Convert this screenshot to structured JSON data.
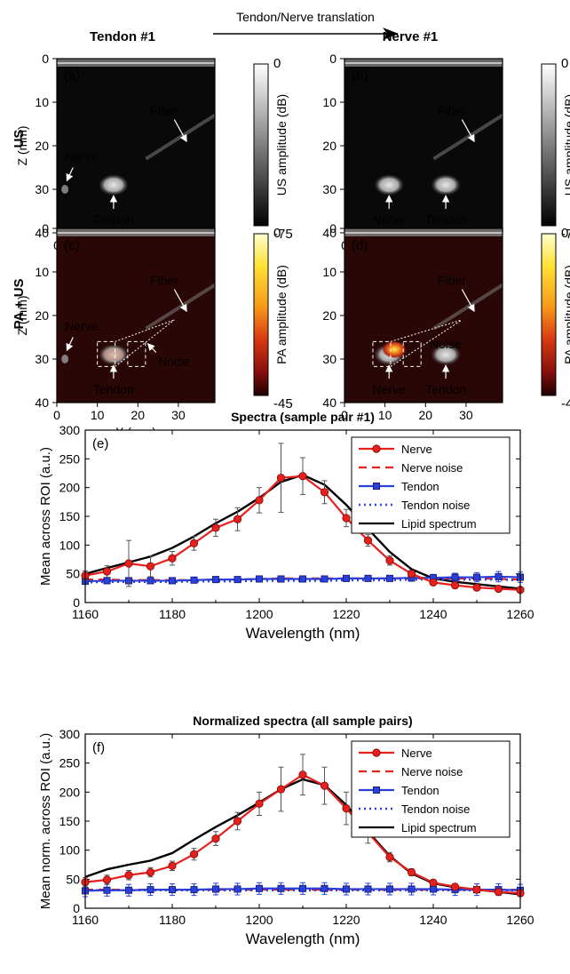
{
  "header": {
    "left_title": "Tendon #1",
    "right_title": "Nerve #1",
    "translation_label": "Tendon/Nerve translation"
  },
  "row_labels": {
    "us": "US",
    "paus": "PA + US"
  },
  "image_panels": {
    "panels": [
      {
        "id": "a",
        "label": "(a)",
        "mode": "US",
        "annotations": [
          {
            "key": "fiber",
            "text": "Fiber"
          },
          {
            "key": "nerve",
            "text": "Nerve"
          },
          {
            "key": "tendon",
            "text": "Tendon"
          }
        ]
      },
      {
        "id": "b",
        "label": "(b)",
        "mode": "US",
        "annotations": [
          {
            "key": "fiber",
            "text": "Fiber"
          },
          {
            "key": "nerve",
            "text": "Nerve"
          },
          {
            "key": "tendon",
            "text": "Tendon"
          }
        ]
      },
      {
        "id": "c",
        "label": "(c)",
        "mode": "PA+US",
        "annotations": [
          {
            "key": "fiber",
            "text": "Fiber"
          },
          {
            "key": "nerve",
            "text": "Nerve"
          },
          {
            "key": "tendon",
            "text": "Tendon"
          },
          {
            "key": "noise",
            "text": "Noise"
          }
        ]
      },
      {
        "id": "d",
        "label": "(d)",
        "mode": "PA+US",
        "annotations": [
          {
            "key": "fiber",
            "text": "Fiber"
          },
          {
            "key": "nerve",
            "text": "Nerve"
          },
          {
            "key": "tendon",
            "text": "Tendon"
          },
          {
            "key": "noise",
            "text": "Noise"
          }
        ]
      }
    ],
    "z_axis": {
      "label": "Z (mm)",
      "ticks": [
        0,
        10,
        20,
        30,
        40
      ]
    },
    "x_axis": {
      "label": "X (mm)",
      "ticks": [
        0,
        10,
        20,
        30
      ]
    },
    "us_colorbar": {
      "label": "US amplitude (dB)",
      "max": "0",
      "min": "-75",
      "colors": [
        "#ffffff",
        "#000000"
      ]
    },
    "pa_colorbar": {
      "label": "PA amplitude (dB)",
      "max": "0",
      "min": "-45",
      "colors": [
        "#ffffd0",
        "#ffe033",
        "#f79a1a",
        "#d93a12",
        "#8a0f0c",
        "#1e0000"
      ]
    }
  },
  "chart_data": [
    {
      "id": "e",
      "type": "line",
      "panel_label": "(e)",
      "title": "Spectra (sample pair #1)",
      "xlabel": "Wavelength (nm)",
      "ylabel": "Mean across ROI (a.u.)",
      "xlim": [
        1160,
        1260
      ],
      "ylim": [
        0,
        300
      ],
      "xticks": [
        1160,
        1180,
        1200,
        1220,
        1240,
        1260
      ],
      "yticks": [
        0,
        50,
        100,
        150,
        200,
        250,
        300
      ],
      "legend_position": "top-right",
      "x": [
        1160,
        1165,
        1170,
        1175,
        1180,
        1185,
        1190,
        1195,
        1200,
        1205,
        1210,
        1215,
        1220,
        1225,
        1230,
        1235,
        1240,
        1245,
        1250,
        1255,
        1260
      ],
      "series": [
        {
          "name": "Nerve",
          "color": "#e8201d",
          "style": "solid-circle",
          "values": [
            47,
            54,
            68,
            63,
            77,
            103,
            130,
            145,
            178,
            217,
            220,
            192,
            147,
            108,
            73,
            50,
            35,
            30,
            26,
            24,
            22
          ],
          "errors": [
            8,
            10,
            40,
            18,
            12,
            12,
            15,
            20,
            22,
            60,
            32,
            20,
            15,
            10,
            8,
            6,
            5,
            5,
            4,
            4,
            4
          ]
        },
        {
          "name": "Nerve noise",
          "color": "#e8201d",
          "style": "dashed",
          "values": [
            40,
            40,
            39,
            39,
            39,
            39,
            40,
            40,
            41,
            42,
            42,
            42,
            42,
            42,
            42,
            42,
            42,
            42,
            42,
            41,
            40
          ]
        },
        {
          "name": "Tendon",
          "color": "#2b3fd9",
          "style": "solid-square",
          "values": [
            37,
            38,
            38,
            38,
            38,
            39,
            40,
            40,
            41,
            41,
            41,
            41,
            42,
            42,
            42,
            43,
            43,
            44,
            44,
            45,
            44
          ],
          "errors": [
            5,
            5,
            5,
            5,
            5,
            5,
            5,
            5,
            5,
            5,
            5,
            5,
            5,
            5,
            5,
            6,
            6,
            7,
            8,
            9,
            9
          ]
        },
        {
          "name": "Tendon noise",
          "color": "#2b3fd9",
          "style": "dotted",
          "values": [
            35,
            36,
            36,
            36,
            36,
            37,
            37,
            37,
            38,
            38,
            38,
            38,
            39,
            39,
            39,
            40,
            40,
            40,
            40,
            40,
            39
          ]
        },
        {
          "name": "Lipid spectrum",
          "color": "#000000",
          "style": "solid",
          "values": [
            50,
            60,
            70,
            80,
            95,
            115,
            138,
            158,
            182,
            210,
            222,
            205,
            170,
            128,
            88,
            58,
            42,
            36,
            32,
            28,
            24
          ]
        }
      ]
    },
    {
      "id": "f",
      "type": "line",
      "panel_label": "(f)",
      "title": "Normalized spectra (all sample pairs)",
      "xlabel": "Wavelength (nm)",
      "ylabel": "Mean norm. across ROI (a.u.)",
      "xlim": [
        1160,
        1260
      ],
      "ylim": [
        0,
        300
      ],
      "xticks": [
        1160,
        1180,
        1200,
        1220,
        1240,
        1260
      ],
      "yticks": [
        0,
        50,
        100,
        150,
        200,
        250,
        300
      ],
      "legend_position": "top-right",
      "x": [
        1160,
        1165,
        1170,
        1175,
        1180,
        1185,
        1190,
        1195,
        1200,
        1205,
        1210,
        1215,
        1220,
        1225,
        1230,
        1235,
        1240,
        1245,
        1250,
        1255,
        1260
      ],
      "series": [
        {
          "name": "Nerve",
          "color": "#e8201d",
          "style": "solid-circle",
          "values": [
            45,
            49,
            57,
            62,
            73,
            93,
            120,
            150,
            180,
            205,
            230,
            211,
            172,
            130,
            88,
            62,
            44,
            37,
            32,
            28,
            26
          ],
          "errors": [
            8,
            8,
            8,
            8,
            8,
            10,
            12,
            15,
            20,
            38,
            35,
            32,
            28,
            18,
            8,
            6,
            5,
            5,
            5,
            5,
            5
          ]
        },
        {
          "name": "Nerve noise",
          "color": "#e8201d",
          "style": "dashed",
          "values": [
            32,
            32,
            32,
            32,
            32,
            32,
            32,
            32,
            32,
            32,
            32,
            32,
            32,
            32,
            32,
            32,
            32,
            32,
            32,
            32,
            32
          ]
        },
        {
          "name": "Tendon",
          "color": "#2b3fd9",
          "style": "solid-square",
          "values": [
            30,
            31,
            31,
            32,
            32,
            32,
            33,
            33,
            34,
            34,
            34,
            34,
            33,
            33,
            33,
            33,
            33,
            32,
            32,
            32,
            31
          ],
          "errors": [
            10,
            10,
            10,
            10,
            10,
            10,
            10,
            10,
            10,
            10,
            10,
            10,
            10,
            10,
            10,
            10,
            10,
            10,
            10,
            10,
            10
          ]
        },
        {
          "name": "Tendon noise",
          "color": "#2b3fd9",
          "style": "dotted",
          "values": [
            31,
            31,
            31,
            31,
            31,
            31,
            31,
            31,
            31,
            31,
            31,
            31,
            31,
            31,
            31,
            31,
            31,
            31,
            31,
            31,
            31
          ]
        },
        {
          "name": "Lipid spectrum",
          "color": "#000000",
          "style": "solid",
          "values": [
            54,
            67,
            75,
            82,
            95,
            118,
            140,
            160,
            182,
            205,
            222,
            212,
            178,
            132,
            90,
            60,
            43,
            36,
            32,
            28,
            24
          ]
        }
      ]
    }
  ]
}
